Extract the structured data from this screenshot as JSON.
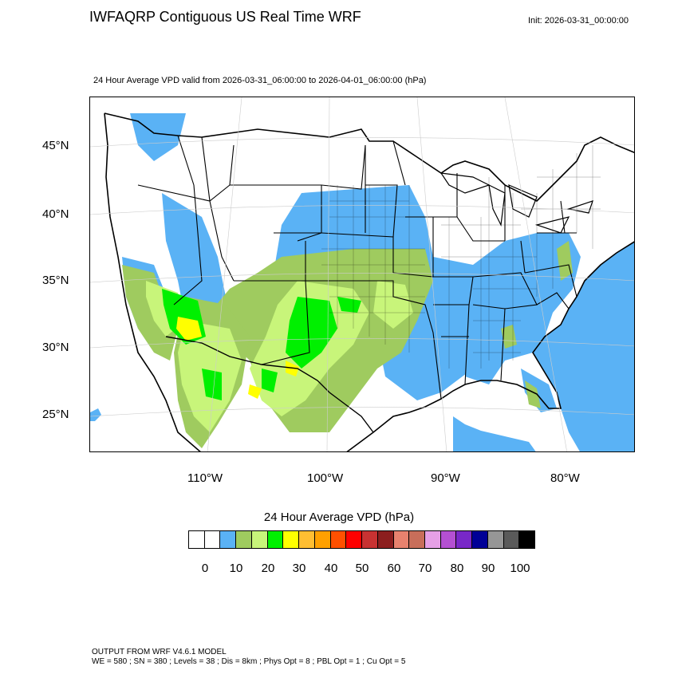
{
  "title": "IWFAQRP Contiguous US Real Time WRF",
  "init": "Init: 2026-03-31_00:00:00",
  "subtitle": "24 Hour Average VPD valid from 2026-03-31_06:00:00 to 2026-04-01_06:00:00   (hPa)",
  "map": {
    "lat_labels": [
      "45°N",
      "40°N",
      "35°N",
      "30°N",
      "25°N"
    ],
    "lon_labels": [
      "110°W",
      "100°W",
      "90°W",
      "80°W"
    ],
    "colors": {
      "ocean": "#5ab2f5",
      "lt10": "#ffffff",
      "b10_15": "#5ab2f5",
      "b15_20": "#9fcb5f",
      "b20_25": "#c8f57a",
      "b25_30": "#00f000",
      "b30_35": "#ffff00",
      "border": "#000000"
    }
  },
  "colorbar": {
    "title": "24 Hour Average VPD  (hPa)",
    "colors": [
      "#ffffff",
      "#ffffff",
      "#5ab2f5",
      "#9fcb5f",
      "#c8f57a",
      "#00f000",
      "#ffff00",
      "#ffbe32",
      "#ffa000",
      "#ff5000",
      "#ff0000",
      "#c83232",
      "#8c1e1e",
      "#e8826e",
      "#c86e5a",
      "#e6a0e6",
      "#b450d2",
      "#7828c8",
      "#000096",
      "#969696",
      "#5a5a5a",
      "#000000"
    ],
    "ticks": [
      "0",
      "10",
      "20",
      "30",
      "40",
      "50",
      "60",
      "70",
      "80",
      "90",
      "100"
    ]
  },
  "footer": {
    "line1": "OUTPUT FROM WRF V4.6.1 MODEL",
    "line2": "WE = 580 ; SN = 380 ; Levels = 38 ; Dis = 8km ; Phys Opt = 8 ; PBL Opt = 1 ; Cu Opt = 5"
  }
}
